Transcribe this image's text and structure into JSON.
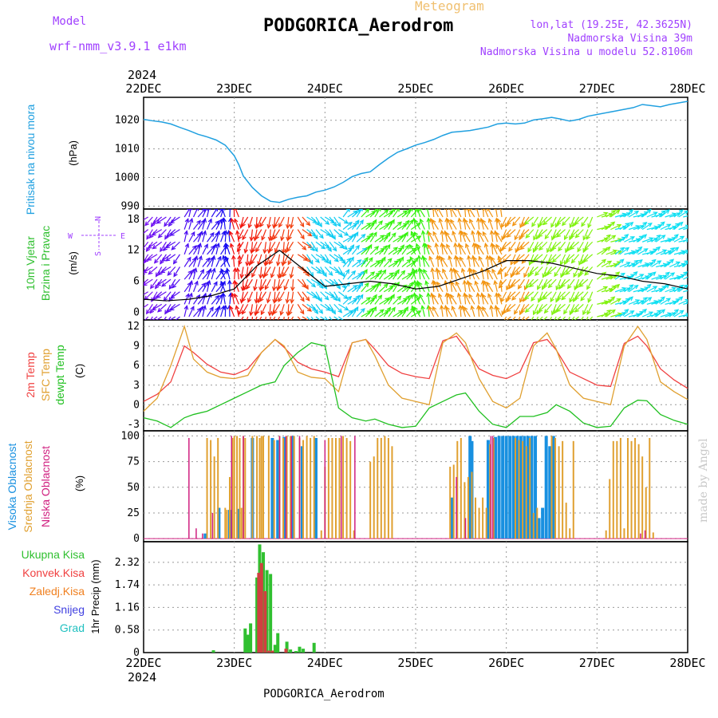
{
  "header": {
    "model_label": "Model",
    "model_name": "wrf-nmm_v3.9.1 e1km",
    "meteogram": "Meteogram",
    "station": "PODGORICA_Aerodrom",
    "lonlat": "lon,lat (19.25E, 42.3625N)",
    "elevation": "Nadmorska Visina 39m",
    "model_elevation": "Nadmorska Visina u modelu 52.8106m",
    "footer_station": "PODGORICA_Aerodrom",
    "watermark": "made by Angel"
  },
  "colors": {
    "pressure": "#20a0e0",
    "temp2m": "#f04040",
    "sfc_temp": "#e0a030",
    "dewpt": "#20c020",
    "high_cloud": "#1890e0",
    "mid_cloud": "#e0a030",
    "low_cloud": "#d02080",
    "total_precip": "#30c030",
    "conv_precip": "#d04040",
    "violet": "#a040ff"
  },
  "chart_data": [
    {
      "type": "line",
      "id": "pressure",
      "year": "2024",
      "x_ticks": [
        "22DEC",
        "23DEC",
        "24DEC",
        "25DEC",
        "26DEC",
        "27DEC",
        "28DEC"
      ],
      "ylabel_lines": [
        "Pritisak na nivou mora",
        "(hPa)"
      ],
      "y_ticks": [
        "990",
        "1000",
        "1010",
        "1020"
      ],
      "ylim": [
        989,
        1028
      ],
      "x_days": [
        0,
        0.1,
        0.2,
        0.3,
        0.4,
        0.5,
        0.6,
        0.7,
        0.8,
        0.9,
        1.0,
        1.05,
        1.1,
        1.2,
        1.3,
        1.4,
        1.5,
        1.6,
        1.7,
        1.8,
        1.9,
        2.0,
        2.1,
        2.2,
        2.3,
        2.4,
        2.5,
        2.6,
        2.7,
        2.8,
        2.9,
        3.0,
        3.1,
        3.2,
        3.3,
        3.4,
        3.5,
        3.6,
        3.7,
        3.8,
        3.9,
        4.0,
        4.1,
        4.2,
        4.3,
        4.4,
        4.5,
        4.6,
        4.7,
        4.8,
        4.9,
        5.0,
        5.2,
        5.4,
        5.5,
        5.7,
        5.8,
        6.0
      ],
      "series": [
        {
          "values": [
            1020.3,
            1019.8,
            1019.4,
            1018.7,
            1017.5,
            1016.4,
            1015.1,
            1014.2,
            1013.1,
            1011.3,
            1007.6,
            1004.5,
            1000.5,
            996.5,
            993.6,
            991.7,
            991.3,
            992.4,
            993.1,
            993.6,
            994.9,
            995.6,
            996.7,
            998.3,
            1000.3,
            1001.4,
            1002.0,
            1004.5,
            1006.8,
            1008.8,
            1010.0,
            1011.3,
            1012.2,
            1013.3,
            1014.7,
            1015.8,
            1016.1,
            1016.4,
            1017.0,
            1017.6,
            1018.7,
            1019.0,
            1018.7,
            1019.0,
            1020.1,
            1020.5,
            1021.0,
            1020.4,
            1019.7,
            1020.3,
            1021.4,
            1022.0,
            1023.2,
            1024.4,
            1025.5,
            1024.7,
            1025.5,
            1026.6
          ]
        }
      ]
    },
    {
      "type": "vector",
      "id": "wind",
      "ylabel_lines": [
        "10m Vjetar",
        "Brzina i Pravac",
        "(m/s)"
      ],
      "compass": {
        "north": "N",
        "west": "W",
        "east": "E",
        "south": "S"
      },
      "y_ticks": [
        "0",
        "6",
        "12",
        "18"
      ],
      "ylim": [
        -1.5,
        20
      ],
      "x_days": [
        0,
        0.25,
        0.5,
        0.75,
        1.0,
        1.25,
        1.5,
        1.75,
        2.0,
        2.25,
        2.5,
        2.75,
        3.0,
        3.25,
        3.5,
        3.75,
        4.0,
        4.25,
        4.5,
        4.75,
        5.0,
        5.25,
        5.5,
        5.75,
        6.0
      ],
      "series": [
        {
          "name": "speed",
          "values": [
            2.5,
            2.2,
            2.5,
            3.2,
            4.5,
            9,
            12,
            8.5,
            5,
            5.5,
            6,
            5.5,
            4.5,
            5,
            6.5,
            8,
            10,
            10,
            9.5,
            8.5,
            7.5,
            7,
            6,
            5.5,
            4.5
          ]
        }
      ]
    },
    {
      "type": "line",
      "id": "temperature",
      "ylabel_lines": [
        "2m Temp",
        "SFC Temp",
        "dewpt Temp",
        "(C)"
      ],
      "y_ticks": [
        "-3",
        "0",
        "3",
        "6",
        "9",
        "12"
      ],
      "ylim": [
        -4,
        13
      ],
      "x_days": [
        0,
        0.15,
        0.3,
        0.45,
        0.55,
        0.7,
        0.85,
        1.0,
        1.15,
        1.3,
        1.45,
        1.55,
        1.7,
        1.85,
        2.0,
        2.15,
        2.3,
        2.45,
        2.55,
        2.7,
        2.85,
        3.0,
        3.15,
        3.3,
        3.45,
        3.55,
        3.7,
        3.85,
        4.0,
        4.15,
        4.3,
        4.45,
        4.55,
        4.7,
        4.85,
        5.0,
        5.15,
        5.3,
        5.45,
        5.55,
        5.7,
        5.85,
        6.0
      ],
      "series": [
        {
          "name": "2m Temp",
          "values": [
            0.5,
            1.6,
            3.5,
            9,
            8,
            6.2,
            5,
            4.6,
            5.5,
            8,
            10,
            8.8,
            6.5,
            5.5,
            5,
            4.3,
            9.5,
            10,
            8.5,
            6,
            4.8,
            4.3,
            4,
            9.8,
            10.5,
            8.6,
            5.5,
            4.5,
            4,
            5,
            9.5,
            10,
            8.4,
            5,
            4,
            3,
            2.8,
            9.4,
            10.5,
            9,
            5.5,
            3.8,
            2.5
          ]
        },
        {
          "name": "SFC Temp",
          "values": [
            -1,
            1,
            6,
            12,
            7,
            5,
            4.2,
            4,
            4.5,
            8,
            10,
            9,
            5,
            4.2,
            4,
            2,
            9.5,
            10,
            7.5,
            3,
            1,
            0.5,
            0,
            9.5,
            11,
            9.5,
            4,
            0.5,
            -0.5,
            1,
            9,
            11,
            8.5,
            3,
            1,
            0.5,
            0,
            9,
            12,
            10,
            3.5,
            2,
            0.8
          ]
        },
        {
          "name": "dewpt Temp",
          "values": [
            -2,
            -2.5,
            -3.5,
            -2,
            -1.5,
            -1,
            0,
            1,
            2,
            3,
            3.5,
            6,
            8,
            9.5,
            9,
            -0.5,
            -2,
            -2.5,
            -2.2,
            -3,
            -3.5,
            -3.3,
            -0.5,
            0.5,
            1.5,
            1.8,
            -1,
            -3,
            -3.5,
            -1.8,
            -1.8,
            -1.2,
            0,
            -1,
            -2.8,
            -3.5,
            -3.3,
            -0.5,
            0.7,
            0.6,
            -1.5,
            -2.4,
            -3
          ]
        }
      ]
    },
    {
      "type": "bar",
      "id": "cloud",
      "ylabel_lines": [
        "Visoka Oblacnost",
        "Srednja Oblacnost",
        "Niska Oblacnost",
        "(%)"
      ],
      "y_ticks": [
        "0",
        "25",
        "50",
        "75",
        "100"
      ],
      "ylim": [
        -3,
        105
      ],
      "series": [
        {
          "name": "Visoka Oblacnost",
          "x_days": [
            0.68,
            0.83,
            0.95,
            1.05,
            1.2,
            1.42,
            1.48,
            1.55,
            1.65,
            1.75,
            1.9,
            3.4,
            3.6,
            3.62,
            3.8,
            3.88,
            3.92,
            3.96,
            4.0,
            4.04,
            4.08,
            4.12,
            4.16,
            4.2,
            4.24,
            4.28,
            4.32,
            4.36,
            4.4,
            4.44,
            4.48,
            4.52
          ],
          "values": [
            5,
            30,
            28,
            29,
            98,
            98,
            96,
            99,
            100,
            90,
            98,
            40,
            100,
            95,
            96,
            99,
            100,
            100,
            100,
            100,
            100,
            100,
            100,
            100,
            100,
            100,
            100,
            20,
            30,
            100,
            90,
            100
          ]
        },
        {
          "name": "Srednja Oblacnost",
          "x_days": [
            0.7,
            0.74,
            0.78,
            0.82,
            0.9,
            0.92,
            0.95,
            0.98,
            1.0,
            1.03,
            1.06,
            1.08,
            1.1,
            1.12,
            1.2,
            1.25,
            1.28,
            1.3,
            1.32,
            1.38,
            1.44,
            1.5,
            1.54,
            1.58,
            1.62,
            1.66,
            1.72,
            1.76,
            1.8,
            1.84,
            1.88,
            1.96,
            2.0,
            2.04,
            2.08,
            2.12,
            2.16,
            2.2,
            2.24,
            2.28,
            2.32,
            2.5,
            2.54,
            2.58,
            2.62,
            2.66,
            2.7,
            2.74,
            3.38,
            3.42,
            3.46,
            3.5,
            3.54,
            3.58,
            3.62,
            3.66,
            3.7,
            3.74,
            3.78,
            3.82,
            3.86,
            4.1,
            4.14,
            4.18,
            4.22,
            4.26,
            4.3,
            4.34,
            4.5,
            4.54,
            4.58,
            4.62,
            4.66,
            4.7,
            4.74,
            5.1,
            5.14,
            5.18,
            5.22,
            5.26,
            5.3,
            5.34,
            5.38,
            5.42,
            5.46,
            5.5,
            5.54,
            5.58,
            5.62
          ],
          "values": [
            98,
            96,
            80,
            98,
            30,
            28,
            60,
            98,
            100,
            100,
            98,
            30,
            100,
            98,
            100,
            100,
            98,
            100,
            100,
            100,
            96,
            100,
            98,
            100,
            100,
            100,
            98,
            96,
            100,
            98,
            100,
            8,
            70,
            98,
            98,
            98,
            98,
            100,
            98,
            95,
            8,
            75,
            80,
            98,
            98,
            100,
            98,
            90,
            70,
            72,
            95,
            98,
            55,
            60,
            65,
            40,
            30,
            40,
            30,
            92,
            98,
            98,
            96,
            95,
            90,
            98,
            25,
            30,
            100,
            98,
            90,
            95,
            35,
            10,
            95,
            8,
            58,
            95,
            95,
            98,
            10,
            98,
            95,
            98,
            92,
            80,
            50,
            98,
            6
          ]
        },
        {
          "name": "Niska Oblacnost",
          "x_days": [
            0.5,
            0.58,
            0.65,
            0.76,
            0.97,
            1.1,
            1.5,
            1.57,
            1.63,
            1.72,
            2.0,
            2.18,
            2.33,
            3.45,
            3.55,
            3.83,
            3.85,
            5.48,
            5.53
          ],
          "values": [
            98,
            10,
            5,
            25,
            100,
            100,
            100,
            100,
            100,
            100,
            96,
            100,
            100,
            60,
            20,
            100,
            100,
            5,
            8
          ]
        }
      ]
    },
    {
      "type": "bar",
      "id": "precip",
      "ylabel_lines": [
        "1hr Precip (mm)"
      ],
      "legend": [
        "Ukupna Kisa",
        "Konvek.Kisa",
        "Zaledj.Kisa",
        "Snijeg",
        "Grad"
      ],
      "y_ticks": [
        "0",
        "0.58",
        "1.16",
        "1.74",
        "2.32"
      ],
      "ylim": [
        0,
        2.85
      ],
      "year": "2024",
      "x_ticks": [
        "22DEC",
        "23DEC",
        "24DEC",
        "25DEC",
        "26DEC",
        "27DEC",
        "28DEC"
      ],
      "series": [
        {
          "name": "Ukupna Kisa",
          "x_days": [
            0.77,
            1.12,
            1.15,
            1.18,
            1.25,
            1.28,
            1.32,
            1.36,
            1.4,
            1.45,
            1.48,
            1.58,
            1.62,
            1.68,
            1.72,
            1.76,
            1.88
          ],
          "values": [
            0.06,
            0.62,
            0.46,
            0.75,
            1.93,
            2.78,
            2.58,
            2.12,
            2.02,
            0.2,
            0.5,
            0.28,
            0.08,
            0.04,
            0.15,
            0.1,
            0.25
          ]
        },
        {
          "name": "Konvek.Kisa",
          "x_days": [
            1.27,
            1.3,
            1.34,
            1.38,
            1.42,
            1.57
          ],
          "values": [
            2.05,
            2.3,
            1.58,
            0.05,
            0.05,
            0.1
          ]
        }
      ]
    }
  ]
}
